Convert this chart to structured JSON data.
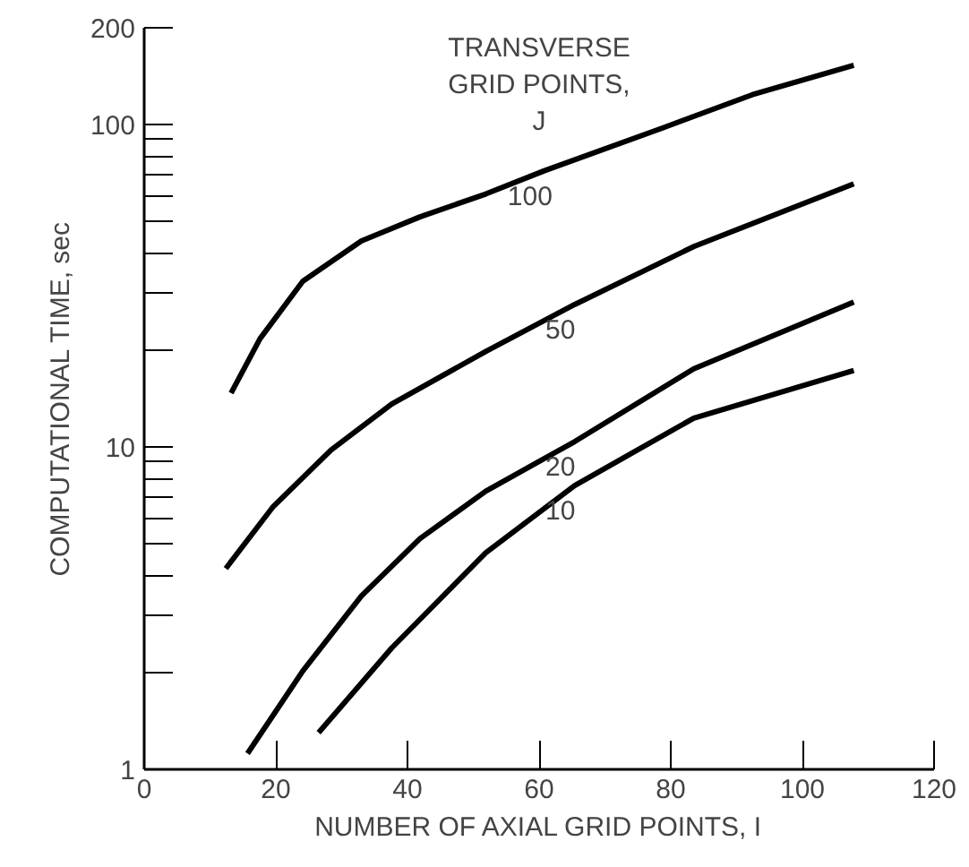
{
  "chart_data": {
    "type": "line",
    "xlabel": "NUMBER OF AXIAL GRID POINTS, I",
    "ylabel": "COMPUTATIONAL TIME, sec",
    "log": "y",
    "grid": false,
    "marker": "none",
    "line_style": "solid",
    "xlim": [
      0,
      120
    ],
    "xticks": [
      0,
      20,
      40,
      60,
      80,
      100,
      120
    ],
    "ylim": [
      1,
      200
    ],
    "yticks": [
      1,
      {
        "value": 2,
        "label": null
      },
      {
        "value": 3,
        "label": null
      },
      {
        "value": 4,
        "label": null
      },
      {
        "value": 5,
        "label": null
      },
      {
        "value": 6,
        "label": null
      },
      {
        "value": 7,
        "label": null
      },
      {
        "value": 8,
        "label": null
      },
      {
        "value": 9,
        "label": null
      },
      10,
      {
        "value": 20,
        "label": null
      },
      {
        "value": 30,
        "label": null
      },
      {
        "value": 40,
        "label": null
      },
      {
        "value": 50,
        "label": null
      },
      {
        "value": 60,
        "label": null
      },
      {
        "value": 70,
        "label": null
      },
      {
        "value": 80,
        "label": null
      },
      {
        "value": 90,
        "label": null
      },
      100,
      200
    ],
    "series": [
      {
        "name": "100",
        "color": "#000000",
        "x": [
          13.2,
          17.6,
          24.1,
          33,
          41.9,
          51.9,
          60.8,
          78.9,
          92.4,
          107.8
        ],
        "values": [
          14.7,
          21.7,
          32.7,
          43.6,
          51.8,
          61,
          72,
          98,
          124,
          153
        ]
      },
      {
        "name": "50",
        "color": "#000000",
        "x": [
          12.4,
          19.5,
          28.4,
          37.6,
          51.9,
          65.4,
          83.5,
          107.8
        ],
        "values": [
          4.2,
          6.5,
          9.8,
          13.6,
          19.8,
          27.7,
          41.9,
          65.6
        ]
      },
      {
        "name": "20",
        "color": "#000000",
        "x": [
          15.7,
          24.1,
          33,
          41.9,
          51.9,
          65.4,
          83.5,
          107.8
        ],
        "values": [
          1.12,
          2.02,
          3.45,
          5.2,
          7.3,
          10.4,
          17.5,
          28.2
        ]
      },
      {
        "name": "10",
        "color": "#000000",
        "x": [
          26.5,
          37.6,
          51.9,
          65.4,
          83.5,
          107.8
        ],
        "values": [
          1.3,
          2.38,
          4.7,
          7.6,
          12.3,
          17.3
        ]
      }
    ],
    "annotations": [
      "TRANSVERSE\nGRID POINTS,\nJ"
    ]
  }
}
